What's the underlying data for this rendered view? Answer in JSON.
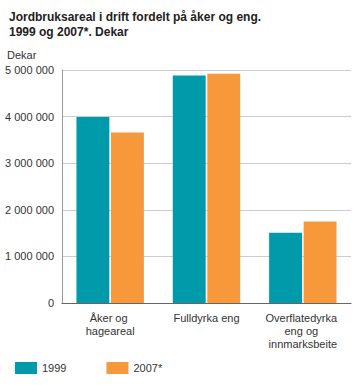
{
  "chart_data": {
    "type": "bar",
    "title": "Jordbruksareal i drift fordelt på åker og eng. 1999 og 2007*. Dekar",
    "y_label": "Dekar",
    "categories": [
      "Åker og hageareal",
      "Fulldyrka eng",
      "Overflatedyrka eng og innmarksbeite"
    ],
    "series": [
      {
        "name": "1999",
        "color": "#009aab",
        "values": [
          3990000,
          4880000,
          1510000
        ]
      },
      {
        "name": "2007*",
        "color": "#f7993b",
        "values": [
          3660000,
          4920000,
          1750000
        ]
      }
    ],
    "ylim": [
      0,
      5000000
    ],
    "yticks": [
      0,
      {
        "value": 1000000,
        "label": "1 000 000"
      },
      {
        "value": 2000000,
        "label": "2 000 000"
      },
      {
        "value": 3000000,
        "label": "3 000 000"
      },
      {
        "value": 4000000,
        "label": "4 000 000"
      },
      {
        "value": 5000000,
        "label": "5 000 000"
      }
    ],
    "grid": true,
    "legend": "bottom-left"
  }
}
